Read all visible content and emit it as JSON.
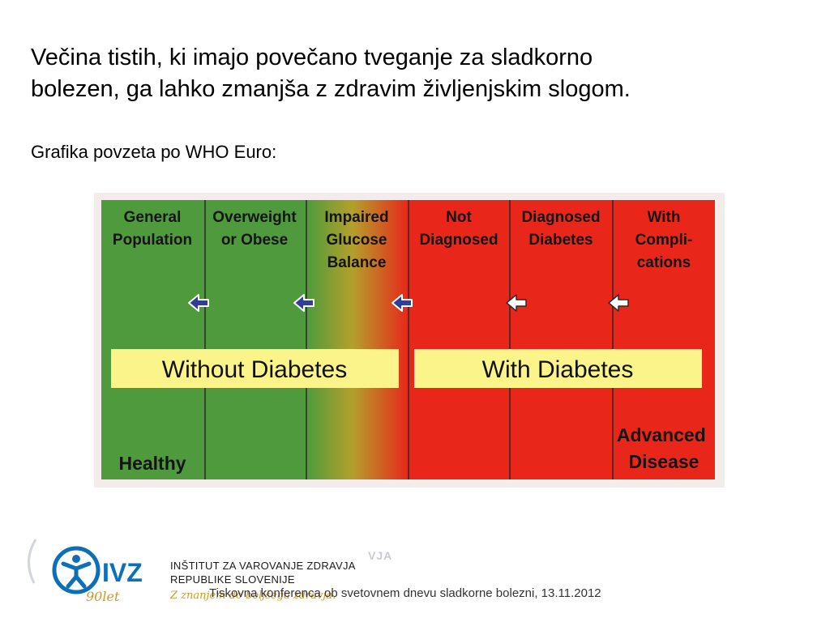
{
  "heading": {
    "line1": "Večina tistih, ki imajo povečano tveganje za sladkorno",
    "line2": "bolezen, ga lahko zmanjša z zdravim življenjskim slogom."
  },
  "source": "Grafika povzeta po WHO Euro:",
  "diagram": {
    "stages": [
      {
        "lines": [
          "General",
          "Population"
        ]
      },
      {
        "lines": [
          "Overweight",
          "or Obese"
        ]
      },
      {
        "lines": [
          "Impaired",
          "Glucose",
          "Balance"
        ]
      },
      {
        "lines": [
          "Not",
          "Diagnosed"
        ]
      },
      {
        "lines": [
          "Diagnosed",
          "Diabetes"
        ]
      },
      {
        "lines": [
          "With",
          "Compli-",
          "cations"
        ]
      }
    ],
    "band_left": "Without Diabetes",
    "band_right": "With Diabetes",
    "end_left": "Healthy",
    "end_right": [
      "Advanced",
      "Disease"
    ],
    "colors": {
      "green": "#4f9a3c",
      "red": "#e8271a",
      "band": "#fbf48a",
      "stage_text": "#141414",
      "blue_arrow": "#2f3f99",
      "white_arrow": "#ffffff"
    }
  },
  "footer": {
    "logo_text": "IVZ",
    "anniversary": "90let",
    "org_line1": "INŠTITUT ZA VAROVANJE ZDRAVJA",
    "org_line2": "REPUBLIKE SLOVENIJE",
    "tagline": "Z znanjem do boljšega zdravja.",
    "ghost_text": "VJA",
    "conference": "Tiskovna konferenca ob svetovnem dnevu sladkorne bolezni, 13.11.2012",
    "brand_color": "#0d6fb8"
  }
}
